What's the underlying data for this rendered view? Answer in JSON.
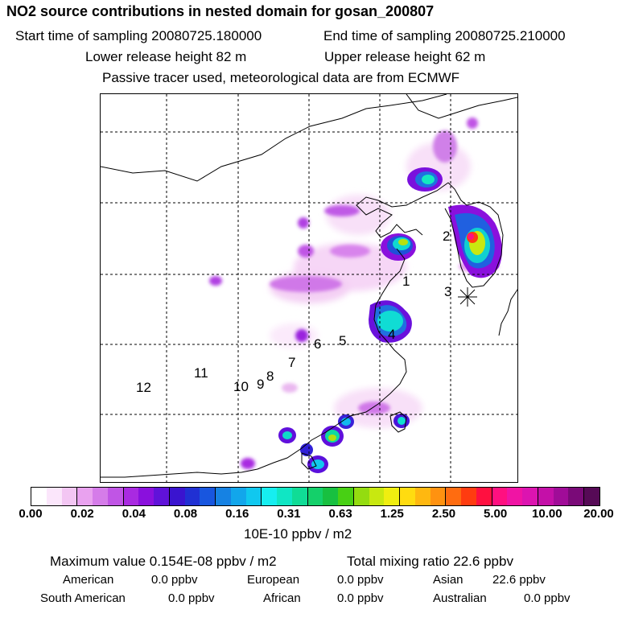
{
  "header": {
    "title": "NO2 source contributions in nested domain for gosan_200807",
    "start_time": "Start time of sampling 20080725.180000",
    "end_time": "End time of sampling 20080725.210000",
    "lower_height": "Lower release height   82 m",
    "upper_height": "Upper release height   62 m",
    "tracer_note": "Passive tracer used, meteorological data are from ECMWF"
  },
  "map": {
    "receptor_labels": [
      "1",
      "2",
      "3",
      "4",
      "5",
      "6",
      "7",
      "8",
      "9",
      "10",
      "11",
      "12"
    ]
  },
  "colorbar": {
    "colors": [
      "#ffffff",
      "#fbe6fb",
      "#f3c6f3",
      "#e9a2ef",
      "#d57ce9",
      "#c055e5",
      "#a92ae1",
      "#8a10dd",
      "#6012d9",
      "#3a14cf",
      "#2030d3",
      "#1856df",
      "#1682e3",
      "#12a6eb",
      "#10c8ef",
      "#16eef0",
      "#10e6c4",
      "#10dc96",
      "#14d06a",
      "#18c040",
      "#48d014",
      "#94dc10",
      "#c8e810",
      "#f0ee10",
      "#ffdc10",
      "#ffb810",
      "#ff9210",
      "#ff6c10",
      "#ff3c10",
      "#ff1040",
      "#ff1080",
      "#f014a4",
      "#dc14b0",
      "#c410a8",
      "#a00c98",
      "#7a0a78",
      "#560a56"
    ],
    "ticks": [
      "0.00",
      "0.02",
      "0.04",
      "0.08",
      "0.16",
      "0.31",
      "0.63",
      "1.25",
      "2.50",
      "5.00",
      "10.00",
      "20.00"
    ],
    "units": "10E-10 ppbv / m2"
  },
  "stats": {
    "max_value": "Maximum value  0.154E-08 ppbv / m2",
    "total_mixing": "Total mixing ratio       22.6 ppbv",
    "american_label": "American",
    "american_value": "0.0 ppbv",
    "european_label": "European",
    "european_value": "0.0 ppbv",
    "asian_label": "Asian",
    "asian_value": "22.6 ppbv",
    "south_american_label": "South American",
    "south_american_value": "0.0 ppbv",
    "african_label": "African",
    "african_value": "0.0 ppbv",
    "australian_label": "Australian",
    "australian_value": "0.0 ppbv"
  }
}
